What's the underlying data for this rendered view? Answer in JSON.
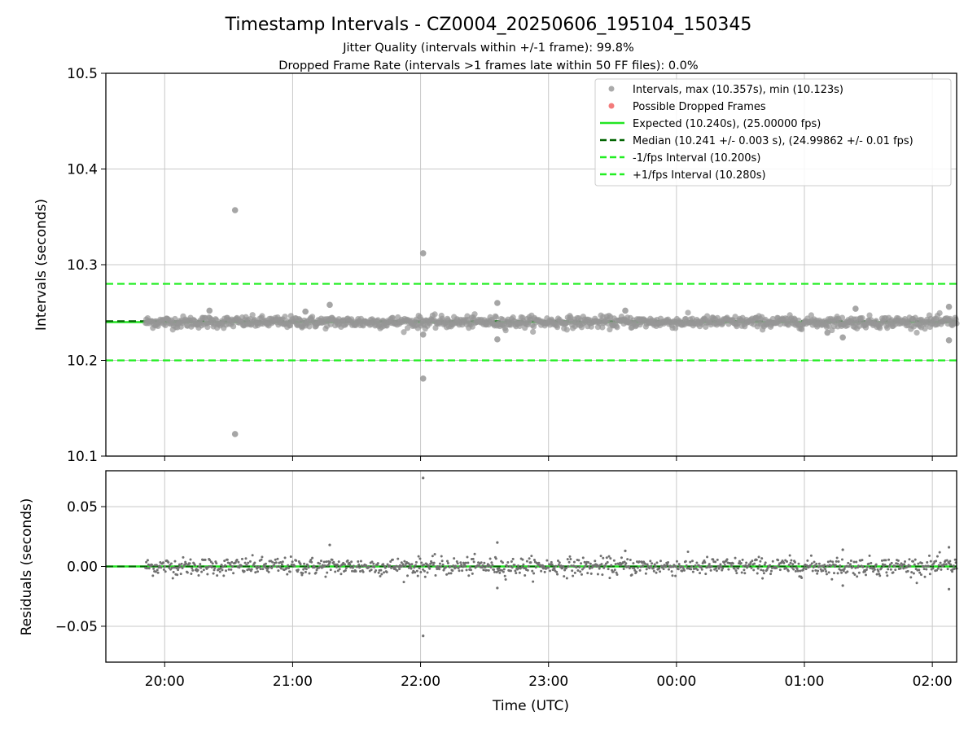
{
  "chart_data": {
    "type": "scatter",
    "title": "Timestamp Intervals - CZ0004_20250606_195104_150345",
    "subtitle_lines": [
      "Jitter Quality (intervals within +/-1 frame): 99.8%",
      "Dropped Frame Rate (intervals >1 frames late within 50 FF files): 0.0%"
    ],
    "xlabel": "Time (UTC)",
    "x_ticks": [
      "20:00",
      "21:00",
      "22:00",
      "23:00",
      "00:00",
      "01:00",
      "02:00"
    ],
    "x_range_hours": [
      19.54,
      26.19
    ],
    "grid": true,
    "legend_placement": "top-right",
    "colors": {
      "intervals": "#969696",
      "dropped": "#f05a5a",
      "expected": "#22e522",
      "median": "#006400",
      "interval_lines": "#22ee22",
      "residuals": "#707070"
    },
    "panels": [
      {
        "name": "intervals",
        "ylabel": "Intervals (seconds)",
        "ylim": [
          10.1,
          10.5
        ],
        "y_ticks": [
          "10.1",
          "10.2",
          "10.3",
          "10.4",
          "10.5"
        ],
        "y_tick_values": [
          10.1,
          10.2,
          10.3,
          10.4,
          10.5
        ],
        "hlines": [
          {
            "key": "expected",
            "value": 10.24
          },
          {
            "key": "median",
            "value": 10.241
          },
          {
            "key": "minus",
            "value": 10.2
          },
          {
            "key": "plus",
            "value": 10.28
          }
        ],
        "baseline": 10.24,
        "outliers": [
          {
            "x": 20.55,
            "y": 10.357
          },
          {
            "x": 20.55,
            "y": 10.123
          },
          {
            "x": 22.02,
            "y": 10.312
          },
          {
            "x": 22.02,
            "y": 10.181
          },
          {
            "x": 22.02,
            "y": 10.227
          },
          {
            "x": 21.29,
            "y": 10.258
          },
          {
            "x": 22.6,
            "y": 10.26
          },
          {
            "x": 22.6,
            "y": 10.222
          },
          {
            "x": 25.3,
            "y": 10.224
          },
          {
            "x": 25.4,
            "y": 10.254
          },
          {
            "x": 26.13,
            "y": 10.256
          },
          {
            "x": 26.13,
            "y": 10.221
          },
          {
            "x": 23.6,
            "y": 10.252
          },
          {
            "x": 20.35,
            "y": 10.252
          },
          {
            "x": 25.18,
            "y": 10.229
          },
          {
            "x": 21.1,
            "y": 10.251
          }
        ]
      },
      {
        "name": "residuals",
        "ylabel": "Residuals (seconds)",
        "ylim": [
          -0.08,
          0.08
        ],
        "y_ticks": [
          "−0.05",
          "0.00",
          "0.05"
        ],
        "y_tick_values": [
          -0.05,
          0.0,
          0.05
        ],
        "baseline": 0.0,
        "outliers": [
          {
            "x": 22.02,
            "y": 0.074
          },
          {
            "x": 22.02,
            "y": -0.058
          },
          {
            "x": 21.29,
            "y": 0.018
          },
          {
            "x": 22.6,
            "y": 0.02
          },
          {
            "x": 22.6,
            "y": -0.018
          },
          {
            "x": 25.3,
            "y": -0.016
          },
          {
            "x": 25.3,
            "y": 0.014
          },
          {
            "x": 26.13,
            "y": 0.016
          },
          {
            "x": 26.13,
            "y": -0.019
          },
          {
            "x": 23.6,
            "y": 0.013
          }
        ]
      }
    ],
    "legend": [
      {
        "key": "intervals",
        "kind": "point",
        "label": "Intervals, max (10.357s), min (10.123s)"
      },
      {
        "key": "dropped",
        "kind": "point",
        "label": "Possible Dropped Frames"
      },
      {
        "key": "expected",
        "kind": "solid",
        "label": "Expected (10.240s), (25.00000 fps)"
      },
      {
        "key": "median",
        "kind": "dashed",
        "label": "Median (10.241 +/- 0.003 s), (24.99862 +/- 0.01 fps)"
      },
      {
        "key": "minus",
        "kind": "dashed",
        "label": "-1/fps Interval (10.200s)"
      },
      {
        "key": "plus",
        "kind": "dashed",
        "label": "+1/fps Interval (10.280s)"
      }
    ],
    "series": [
      {
        "name": "Intervals, max (10.357s), min (10.123s)",
        "x_start_hours": 19.85,
        "x_end_hours": 26.19,
        "center": 10.24,
        "spread": 0.003,
        "count": 1100
      },
      {
        "name": "Possible Dropped Frames",
        "count": 0
      }
    ]
  }
}
